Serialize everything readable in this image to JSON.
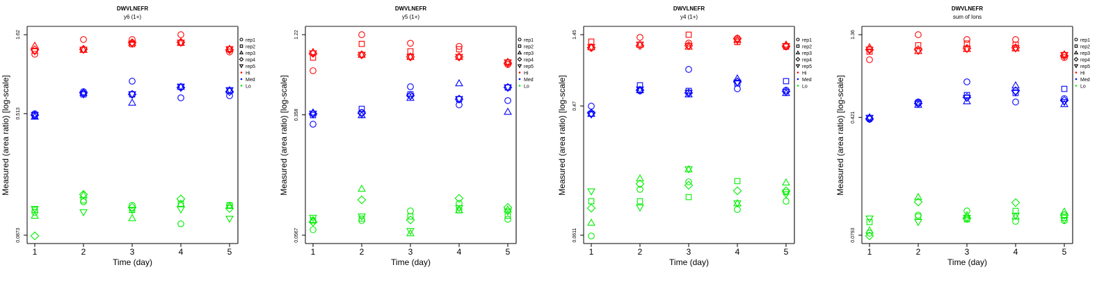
{
  "chart_data": [
    {
      "type": "scatter",
      "title": "DWVLNEFR",
      "subtitle": "y6 (1+)",
      "xlabel": "Time (day)",
      "ylabel": "Measured (area ratio) [log-scale]",
      "yscale": "log",
      "x_ticks": [
        "1",
        "2",
        "3",
        "4",
        "5"
      ],
      "y_ticks": [
        1.62,
        0.513,
        0.0873
      ],
      "y_tick_labels": [
        "1.62",
        "0.513",
        "0.0873"
      ],
      "x": [
        1,
        2,
        3,
        4,
        5
      ],
      "series": [
        {
          "group": "Hi",
          "rep": "rep1",
          "values": [
            1.22,
            1.51,
            1.51,
            1.62,
            1.26
          ]
        },
        {
          "group": "Hi",
          "rep": "rep2",
          "values": [
            1.28,
            1.3,
            1.41,
            1.44,
            1.31
          ]
        },
        {
          "group": "Hi",
          "rep": "rep3",
          "values": [
            1.38,
            1.3,
            1.44,
            1.44,
            1.32
          ]
        },
        {
          "group": "Hi",
          "rep": "rep4",
          "values": [
            1.3,
            1.31,
            1.44,
            1.45,
            1.3
          ]
        },
        {
          "group": "Hi",
          "rep": "rep5",
          "values": [
            1.27,
            1.3,
            1.42,
            1.44,
            1.31
          ]
        },
        {
          "group": "Med",
          "rep": "rep1",
          "values": [
            0.512,
            0.707,
            0.823,
            0.646,
            0.666
          ]
        },
        {
          "group": "Med",
          "rep": "rep2",
          "values": [
            0.497,
            0.679,
            0.679,
            0.759,
            0.715
          ]
        },
        {
          "group": "Med",
          "rep": "rep3",
          "values": [
            0.491,
            0.693,
            0.602,
            0.759,
            0.722
          ]
        },
        {
          "group": "Med",
          "rep": "rep4",
          "values": [
            0.502,
            0.693,
            0.679,
            0.751,
            0.707
          ]
        },
        {
          "group": "Med",
          "rep": "rep5",
          "values": [
            0.502,
            0.679,
            0.679,
            0.759,
            0.722
          ]
        },
        {
          "group": "Lo",
          "rep": "rep1",
          "values": [
            0.122,
            0.142,
            0.135,
            0.103,
            0.135
          ]
        },
        {
          "group": "Lo",
          "rep": "rep2",
          "values": [
            0.126,
            0.145,
            0.126,
            0.138,
            0.135
          ]
        },
        {
          "group": "Lo",
          "rep": "rep3",
          "values": [
            0.116,
            0.157,
            0.112,
            0.138,
            0.134
          ]
        },
        {
          "group": "Lo",
          "rep": "rep4",
          "values": [
            0.0865,
            0.158,
            0.131,
            0.148,
            0.129
          ]
        },
        {
          "group": "Lo",
          "rep": "rep5",
          "values": [
            0.128,
            0.122,
            0.126,
            0.127,
            0.111
          ]
        }
      ]
    },
    {
      "type": "scatter",
      "title": "DWVLNEFR",
      "subtitle": "y5 (1+)",
      "xlabel": "Time (day)",
      "ylabel": "Measured (area ratio) [log-scale]",
      "yscale": "log",
      "x_ticks": [
        "1",
        "2",
        "3",
        "4",
        "5"
      ],
      "y_ticks": [
        1.22,
        0.358,
        0.0567
      ],
      "y_tick_labels": [
        "1.22",
        "0.358",
        "0.0567"
      ],
      "x": [
        1,
        2,
        3,
        4,
        5
      ],
      "series": [
        {
          "group": "Hi",
          "rep": "rep1",
          "values": [
            0.703,
            1.22,
            1.07,
            1.02,
            0.773
          ]
        },
        {
          "group": "Hi",
          "rep": "rep2",
          "values": [
            0.859,
            1.06,
            0.946,
            0.976,
            0.798
          ]
        },
        {
          "group": "Hi",
          "rep": "rep3",
          "values": [
            0.936,
            0.897,
            0.869,
            0.869,
            0.806
          ]
        },
        {
          "group": "Hi",
          "rep": "rep4",
          "values": [
            0.917,
            0.897,
            0.869,
            0.869,
            0.789
          ]
        },
        {
          "group": "Hi",
          "rep": "rep5",
          "values": [
            0.917,
            0.897,
            0.869,
            0.869,
            0.798
          ]
        },
        {
          "group": "Med",
          "rep": "rep1",
          "values": [
            0.31,
            0.371,
            0.55,
            0.417,
            0.445
          ]
        },
        {
          "group": "Med",
          "rep": "rep2",
          "values": [
            0.356,
            0.392,
            0.49,
            0.455,
            0.544
          ]
        },
        {
          "group": "Med",
          "rep": "rep3",
          "values": [
            0.371,
            0.356,
            0.464,
            0.58,
            0.375
          ]
        },
        {
          "group": "Med",
          "rep": "rep4",
          "values": [
            0.364,
            0.367,
            0.48,
            0.455,
            0.544
          ]
        },
        {
          "group": "Med",
          "rep": "rep5",
          "values": [
            0.364,
            0.36,
            0.475,
            0.455,
            0.544
          ]
        },
        {
          "group": "Lo",
          "rep": "rep1",
          "values": [
            0.0617,
            0.0709,
            0.0822,
            0.0924,
            0.0724
          ]
        },
        {
          "group": "Lo",
          "rep": "rep2",
          "values": [
            0.0709,
            0.0731,
            0.0755,
            0.0831,
            0.0763
          ]
        },
        {
          "group": "Lo",
          "rep": "rep3",
          "values": [
            0.0716,
            0.1155,
            0.0585,
            0.0831,
            0.084
          ]
        },
        {
          "group": "Lo",
          "rep": "rep4",
          "values": [
            0.0694,
            0.0974,
            0.0716,
            0.0997,
            0.0867
          ]
        },
        {
          "group": "Lo",
          "rep": "rep5",
          "values": [
            0.0739,
            0.0755,
            0.0604,
            0.0858,
            0.0813
          ]
        }
      ]
    },
    {
      "type": "scatter",
      "title": "DWVLNEFR",
      "subtitle": "y4 (1+)",
      "xlabel": "Time (day)",
      "ylabel": "Measured (area ratio) [log-scale]",
      "yscale": "log",
      "x_ticks": [
        "1",
        "2",
        "3",
        "4",
        "5"
      ],
      "y_ticks": [
        1.45,
        0.47,
        0.0611
      ],
      "y_tick_labels": [
        "1.45",
        "0.47",
        "0.0611"
      ],
      "x": [
        1,
        2,
        3,
        4,
        5
      ],
      "series": [
        {
          "group": "Hi",
          "rep": "rep1",
          "values": [
            1.18,
            1.39,
            1.27,
            1.37,
            1.2
          ]
        },
        {
          "group": "Hi",
          "rep": "rep2",
          "values": [
            1.3,
            1.24,
            1.45,
            1.29,
            1.2
          ]
        },
        {
          "group": "Hi",
          "rep": "rep3",
          "values": [
            1.19,
            1.24,
            1.2,
            1.34,
            1.24
          ]
        },
        {
          "group": "Hi",
          "rep": "rep4",
          "values": [
            1.18,
            1.22,
            1.22,
            1.36,
            1.21
          ]
        },
        {
          "group": "Hi",
          "rep": "rep5",
          "values": [
            1.19,
            1.24,
            1.21,
            1.32,
            1.21
          ]
        },
        {
          "group": "Med",
          "rep": "rep1",
          "values": [
            0.469,
            0.597,
            0.838,
            0.617,
            0.604
          ]
        },
        {
          "group": "Med",
          "rep": "rep2",
          "values": [
            0.416,
            0.652,
            0.597,
            0.673,
            0.696
          ]
        },
        {
          "group": "Med",
          "rep": "rep3",
          "values": [
            0.416,
            0.604,
            0.565,
            0.727,
            0.578
          ]
        },
        {
          "group": "Med",
          "rep": "rep4",
          "values": [
            0.421,
            0.604,
            0.578,
            0.688,
            0.591
          ]
        },
        {
          "group": "Med",
          "rep": "rep5",
          "values": [
            0.411,
            0.61,
            0.578,
            0.68,
            0.585
          ]
        },
        {
          "group": "Lo",
          "rep": "rep1",
          "values": [
            0.0604,
            0.126,
            0.142,
            0.0917,
            0.1045
          ]
        },
        {
          "group": "Lo",
          "rep": "rep2",
          "values": [
            0.1045,
            0.1045,
            0.1116,
            0.1437,
            0.1206
          ]
        },
        {
          "group": "Lo",
          "rep": "rep3",
          "values": [
            0.0744,
            0.15,
            0.173,
            0.1012,
            0.1405
          ]
        },
        {
          "group": "Lo",
          "rep": "rep4",
          "values": [
            0.0937,
            0.1375,
            0.1345,
            0.1232,
            0.1232
          ]
        },
        {
          "group": "Lo",
          "rep": "rep5",
          "values": [
            0.122,
            0.0947,
            0.173,
            0.1012,
            0.1166
          ]
        }
      ]
    },
    {
      "type": "scatter",
      "title": "DWVLNEFR",
      "subtitle": "sum of Ions",
      "xlabel": "Time (day)",
      "ylabel": "Measured (area ratio) [log-scale]",
      "yscale": "log",
      "x_ticks": [
        "1",
        "2",
        "3",
        "4",
        "5"
      ],
      "y_ticks": [
        1.36,
        0.421,
        0.0793
      ],
      "y_tick_labels": [
        "1.36",
        "0.421",
        "0.0793"
      ],
      "x": [
        1,
        2,
        3,
        4,
        5
      ],
      "series": [
        {
          "group": "Hi",
          "rep": "rep1",
          "values": [
            0.954,
            1.36,
            1.27,
            1.27,
            0.983
          ]
        },
        {
          "group": "Hi",
          "rep": "rep2",
          "values": [
            1.07,
            1.17,
            1.2,
            1.18,
            1.02
          ]
        },
        {
          "group": "Hi",
          "rep": "rep3",
          "values": [
            1.14,
            1.08,
            1.11,
            1.12,
            1.03
          ]
        },
        {
          "group": "Hi",
          "rep": "rep4",
          "values": [
            1.1,
            1.1,
            1.12,
            1.13,
            1.01
          ]
        },
        {
          "group": "Hi",
          "rep": "rep5",
          "values": [
            1.1,
            1.08,
            1.11,
            1.12,
            1.02
          ]
        },
        {
          "group": "Med",
          "rep": "rep1",
          "values": [
            0.41,
            0.524,
            0.697,
            0.524,
            0.55
          ]
        },
        {
          "group": "Med",
          "rep": "rep2",
          "values": [
            0.418,
            0.519,
            0.578,
            0.595,
            0.631
          ]
        },
        {
          "group": "Med",
          "rep": "rep3",
          "values": [
            0.422,
            0.504,
            0.529,
            0.663,
            0.509
          ]
        },
        {
          "group": "Med",
          "rep": "rep4",
          "values": [
            0.414,
            0.514,
            0.56,
            0.615,
            0.535
          ]
        },
        {
          "group": "Med",
          "rep": "rep5",
          "values": [
            0.418,
            0.509,
            0.555,
            0.6,
            0.524
          ]
        },
        {
          "group": "Lo",
          "rep": "rep1",
          "values": [
            0.0817,
            0.1054,
            0.1119,
            0.0965,
            0.0974
          ]
        },
        {
          "group": "Lo",
          "rep": "rep2",
          "values": [
            0.0955,
            0.1034,
            0.0994,
            0.1119,
            0.1014
          ]
        },
        {
          "group": "Lo",
          "rep": "rep3",
          "values": [
            0.0849,
            0.1362,
            0.1054,
            0.1034,
            0.1108
          ]
        },
        {
          "group": "Lo",
          "rep": "rep4",
          "values": [
            0.0785,
            0.1271,
            0.1004,
            0.1259,
            0.1054
          ]
        },
        {
          "group": "Lo",
          "rep": "rep5",
          "values": [
            0.1004,
            0.0955,
            0.1014,
            0.1044,
            0.0984
          ]
        }
      ]
    }
  ],
  "legend": {
    "placement": "right",
    "reps": [
      {
        "label": "rep1",
        "shape": "circle"
      },
      {
        "label": "rep2",
        "shape": "square"
      },
      {
        "label": "rep3",
        "shape": "triangle-up"
      },
      {
        "label": "rep4",
        "shape": "diamond"
      },
      {
        "label": "rep5",
        "shape": "triangle-down"
      }
    ],
    "groups": [
      {
        "label": "Hi",
        "color": "#ff0000"
      },
      {
        "label": "Med",
        "color": "#0000ff"
      },
      {
        "label": "Lo",
        "color": "#00ee00"
      }
    ]
  }
}
